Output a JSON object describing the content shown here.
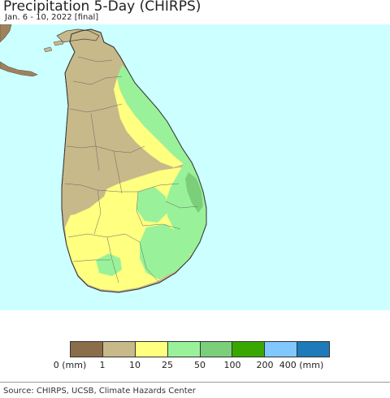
{
  "header": {
    "title": "Precipitation 5-Day (CHIRPS)",
    "subtitle": "Jan. 6 - 10, 2022 [final]"
  },
  "map": {
    "region": "Sri Lanka",
    "colors": {
      "ocean": "#ccffff",
      "india": "#a0825a"
    },
    "precip_zones": [
      {
        "zone": "north-interior-dry",
        "class": "1-10 mm",
        "color": "#c8b98a"
      },
      {
        "zone": "northeast-coast",
        "class": "25-50 mm",
        "color": "#99f299"
      },
      {
        "zone": "east-coast",
        "class": "25-50 mm",
        "color": "#99f299"
      },
      {
        "zone": "batticaloa-coast",
        "class": "50-100 mm",
        "color": "#7bcf7b"
      },
      {
        "zone": "central-highlands",
        "class": "10-25 mm",
        "color": "#ffff80"
      },
      {
        "zone": "southeast",
        "class": "25-50 mm",
        "color": "#99f299"
      },
      {
        "zone": "southwest",
        "class": "10-25 mm",
        "color": "#ffff80"
      }
    ]
  },
  "legend": {
    "colors": [
      "#8b6c4b",
      "#c8b98a",
      "#ffff80",
      "#99f299",
      "#7bcf7b",
      "#38a800",
      "#80c8ff",
      "#1e7ab8"
    ],
    "ticks": [
      "0 (mm)",
      "1",
      "10",
      "25",
      "50",
      "100",
      "200",
      "400 (mm)"
    ]
  },
  "footer": {
    "source": "Source: CHIRPS, UCSB, Climate Hazards Center"
  }
}
